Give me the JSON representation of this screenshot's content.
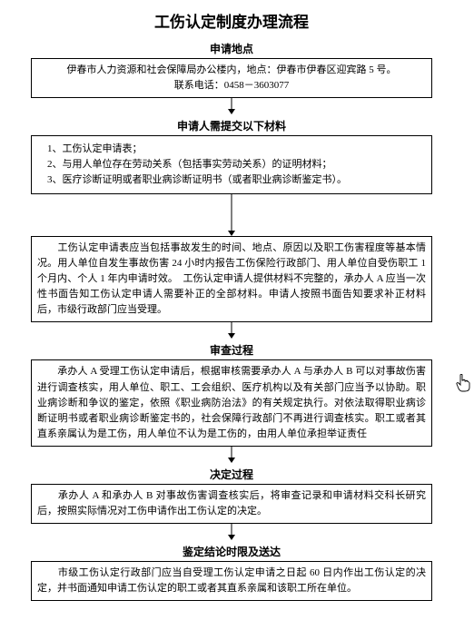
{
  "title": "工伤认定制度办理流程",
  "arrow": {
    "color": "#000000",
    "length_short": 18,
    "length_long": 46
  },
  "box_style": {
    "border_color": "#000000",
    "font_size": 11
  },
  "steps": [
    {
      "label": "申请地点",
      "box_class": "box box-center",
      "content": "伊春市人力资源和社会保障局办公楼内，地点：伊春市伊春区迎宾路 5 号。\n联系电话：0458－3603077",
      "arrow_after": "short"
    },
    {
      "label": "申请人需提交以下材料",
      "box_class": "box",
      "list": [
        "1、工伤认定申请表；",
        "2、与用人单位存在劳动关系（包括事实劳动关系）的证明材料；",
        "3、医疗诊断证明或者职业病诊断证明书（或者职业病诊断鉴定书）。"
      ],
      "arrow_after": "long"
    },
    {
      "label": "",
      "box_class": "box",
      "content": "　　工伤认定申请表应当包括事故发生的时间、地点、原因以及职工伤害程度等基本情况。用人单位自发生事故伤害 24 小时内报告工伤保险行政部门、用人单位自受伤职工 1 个月内、个人 1 年内申请时效。　工伤认定申请人提供材料不完整的，承办人 A 应当一次性书面告知工伤认定申请人需要补正的全部材料。申请人按照书面告知要求补正材料后，市级行政部门应当受理。",
      "arrow_after": "short"
    },
    {
      "label": "审查过程",
      "box_class": "box",
      "content": "　　承办人 A 受理工伤认定申请后，根据审核需要承办人 A 与承办人 B 可以对事故伤害进行调查核实，用人单位、职工、工会组织、医疗机构以及有关部门应当予以协助。职业病诊断和争议的鉴定，依照《职业病防治法》的有关规定执行。对依法取得职业病诊断证明书或者职业病诊断鉴定书的，社会保障行政部门不再进行调查核实。职工或者其直系亲属认为是工伤，用人单位不认为是工伤的，由用人单位承担举证责任",
      "arrow_after": "short"
    },
    {
      "label": "决定过程",
      "box_class": "box",
      "content": "　　承办人 A 和承办人 B 对事故伤害调查核实后，将审查记录和申请材料交科长研究后，按照实际情况对工伤申请作出工伤认定的决定。",
      "arrow_after": "short"
    },
    {
      "label": "鉴定结论时限及送达",
      "box_class": "box",
      "content": "　　市级工伤认定行政部门应当自受理工伤认定申请之日起 60 日内作出工伤认定的决定，并书面通知申请工伤认定的职工或者其直系亲属和该职工所在单位。",
      "arrow_after": ""
    }
  ],
  "cursor": {
    "visible": true,
    "color": "#000000"
  }
}
